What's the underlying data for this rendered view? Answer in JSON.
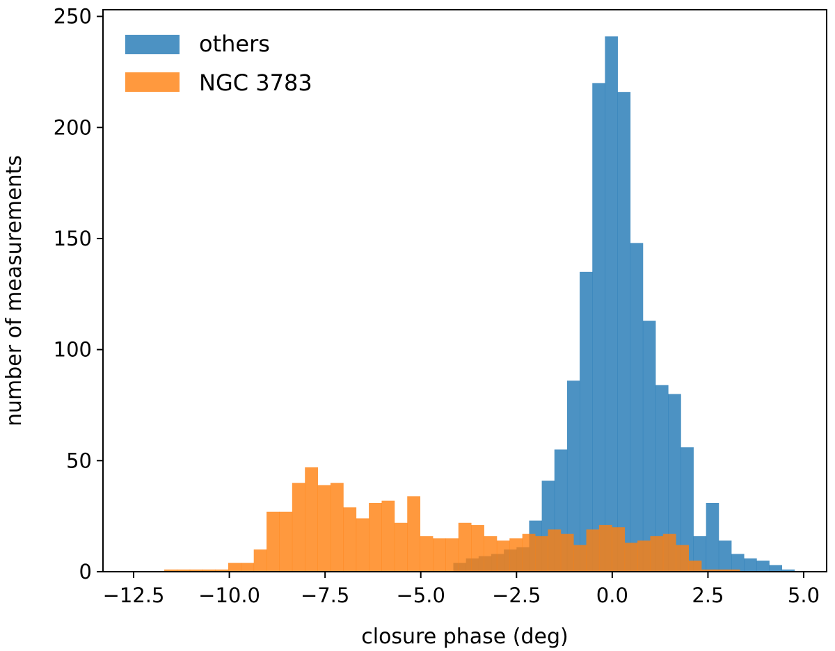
{
  "chart_data": {
    "type": "histogram",
    "xlabel": "closure phase (deg)",
    "ylabel": "number of measurements",
    "xlim": [
      -13.3,
      5.6
    ],
    "ylim": [
      0,
      253
    ],
    "x_ticks": [
      {
        "value": -12.5,
        "label": "−12.5"
      },
      {
        "value": -10.0,
        "label": "−10.0"
      },
      {
        "value": -7.5,
        "label": "−7.5"
      },
      {
        "value": -5.0,
        "label": "−5.0"
      },
      {
        "value": -2.5,
        "label": "−2.5"
      },
      {
        "value": 0.0,
        "label": "0.0"
      },
      {
        "value": 2.5,
        "label": "2.5"
      },
      {
        "value": 5.0,
        "label": "5.0"
      }
    ],
    "y_ticks": [
      {
        "value": 0,
        "label": "0"
      },
      {
        "value": 50,
        "label": "50"
      },
      {
        "value": 100,
        "label": "100"
      },
      {
        "value": 150,
        "label": "150"
      },
      {
        "value": 200,
        "label": "200"
      },
      {
        "value": 250,
        "label": "250"
      }
    ],
    "legend": {
      "position": "top-left"
    },
    "series": [
      {
        "name": "others",
        "color": "#1f77b4",
        "alpha": 0.8,
        "bin_start": -4.15,
        "bin_width": 0.33,
        "counts": [
          4,
          6,
          7,
          8,
          10,
          11,
          23,
          41,
          55,
          86,
          135,
          220,
          241,
          216,
          148,
          113,
          84,
          80,
          56,
          16,
          31,
          14,
          8,
          6,
          5,
          3,
          1
        ]
      },
      {
        "name": "NGC 3783",
        "color": "#ff7f0e",
        "alpha": 0.8,
        "bin_start": -11.7,
        "bin_width": 0.334,
        "counts": [
          1,
          1,
          1,
          1,
          1,
          4,
          4,
          10,
          27,
          27,
          40,
          47,
          39,
          40,
          29,
          24,
          31,
          32,
          22,
          34,
          16,
          15,
          15,
          22,
          21,
          16,
          14,
          15,
          17,
          16,
          19,
          17,
          12,
          19,
          21,
          20,
          13,
          14,
          16,
          17,
          12,
          5,
          1,
          1,
          1
        ]
      }
    ]
  }
}
